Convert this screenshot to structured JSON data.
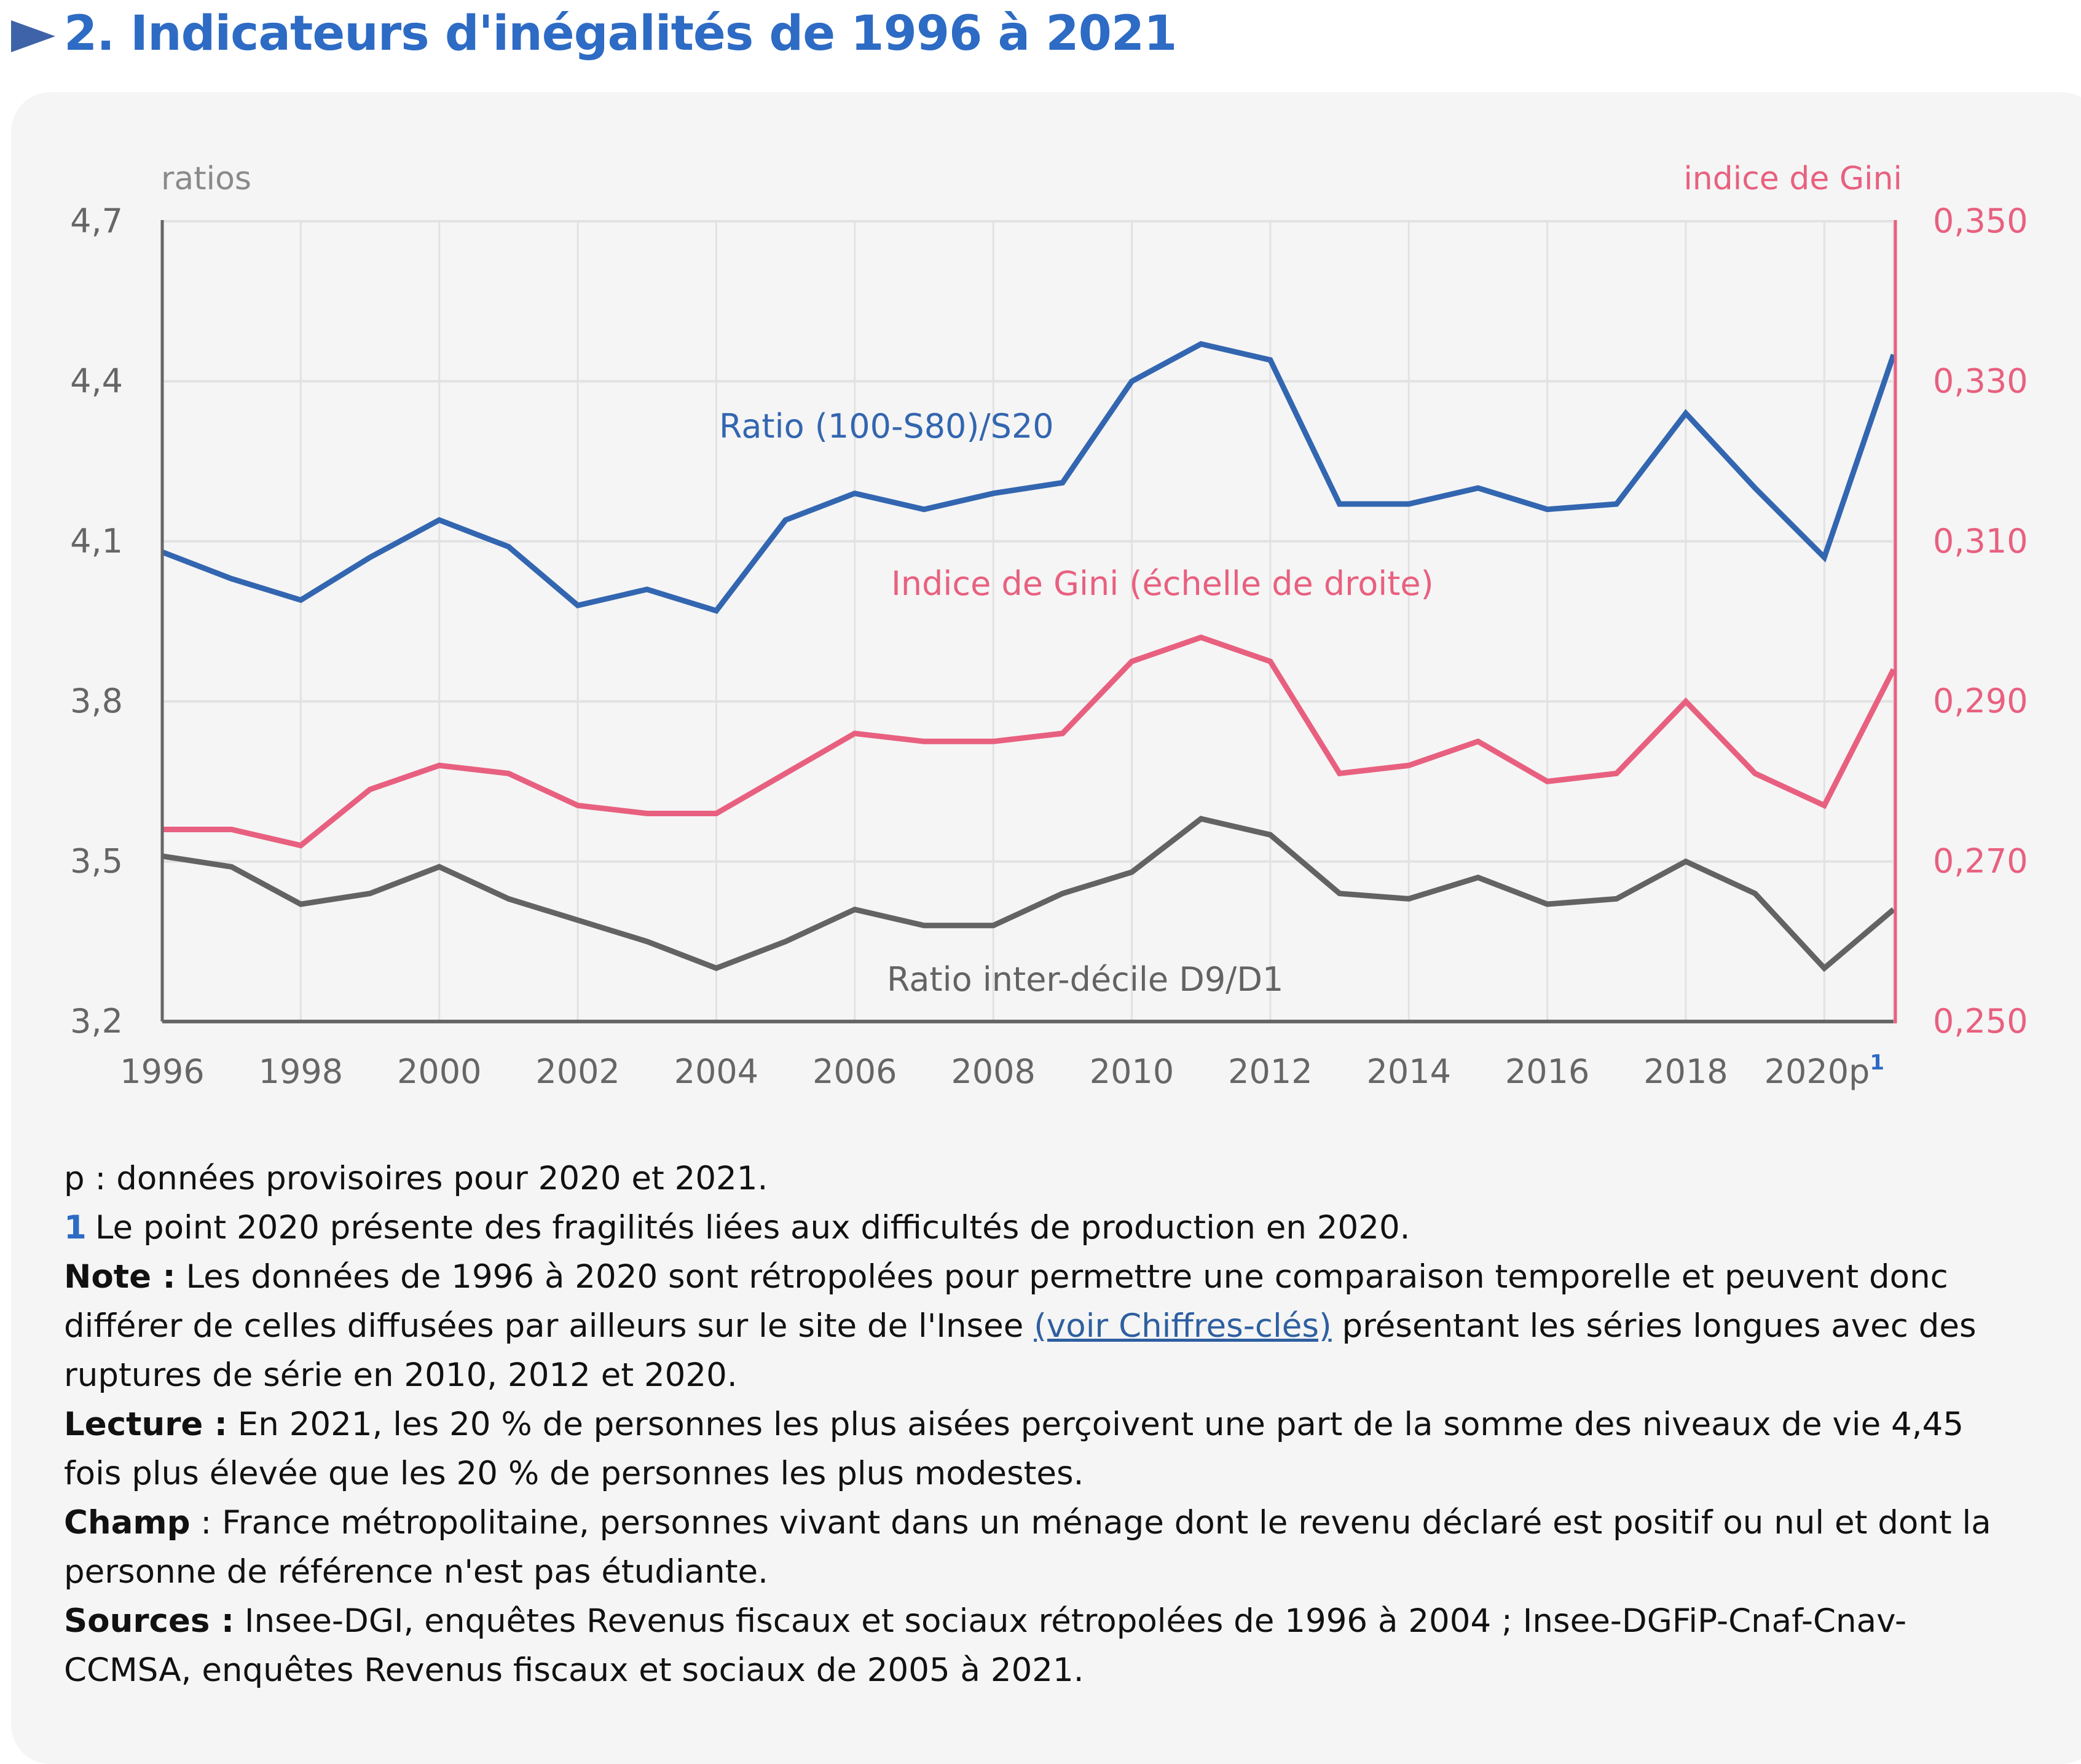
{
  "header": {
    "title": "2. Indicateurs d'inégalités de 1996 à 2021",
    "title_color": "#2d6bc4"
  },
  "chart_data": {
    "type": "line",
    "title": "2. Indicateurs d'inégalités de 1996 à 2021",
    "x": [
      1996,
      1997,
      1998,
      1999,
      2000,
      2001,
      2002,
      2003,
      2004,
      2005,
      2006,
      2007,
      2008,
      2009,
      2010,
      2011,
      2012,
      2013,
      2014,
      2015,
      2016,
      2017,
      2018,
      2019,
      2020,
      2021
    ],
    "x_tick_labels": [
      "1996",
      "1998",
      "2000",
      "2002",
      "2004",
      "2006",
      "2008",
      "2010",
      "2012",
      "2014",
      "2016",
      "2018",
      "2020p"
    ],
    "x_tick_footnote": "1",
    "left_axis": {
      "label": "ratios",
      "ylim": [
        3.2,
        4.7
      ],
      "ticks": [
        "4,7",
        "4,4",
        "4,1",
        "3,8",
        "3,5",
        "3,2"
      ],
      "tick_values": [
        4.7,
        4.4,
        4.1,
        3.8,
        3.5,
        3.2
      ]
    },
    "right_axis": {
      "label": "indice de Gini",
      "ylim": [
        0.25,
        0.35
      ],
      "ticks": [
        "0,350",
        "0,330",
        "0,310",
        "0,290",
        "0,270",
        "0,250"
      ],
      "tick_values": [
        0.35,
        0.33,
        0.31,
        0.29,
        0.27,
        0.25
      ],
      "color": "#e8607f"
    },
    "grid": true,
    "series": [
      {
        "name": "Ratio (100-S80)/S20",
        "axis": "left",
        "color": "#3366b0",
        "values": [
          4.08,
          4.03,
          3.99,
          4.07,
          4.14,
          4.09,
          3.98,
          4.01,
          3.97,
          4.14,
          4.19,
          4.16,
          4.19,
          4.21,
          4.4,
          4.47,
          4.44,
          4.17,
          4.17,
          4.2,
          4.16,
          4.17,
          4.34,
          4.2,
          4.07,
          4.45
        ]
      },
      {
        "name": "Indice de Gini (échelle de droite)",
        "axis": "right",
        "color": "#e8607f",
        "values": [
          0.274,
          0.274,
          0.272,
          0.279,
          0.282,
          0.281,
          0.277,
          0.276,
          0.276,
          0.281,
          0.286,
          0.285,
          0.285,
          0.286,
          0.295,
          0.298,
          0.295,
          0.281,
          0.282,
          0.285,
          0.28,
          0.281,
          0.29,
          0.281,
          0.277,
          0.294
        ]
      },
      {
        "name": "Ratio inter-décile D9/D1",
        "axis": "left",
        "color": "#636363",
        "values": [
          3.51,
          3.49,
          3.42,
          3.44,
          3.49,
          3.43,
          3.39,
          3.35,
          3.3,
          3.35,
          3.41,
          3.38,
          3.38,
          3.44,
          3.48,
          3.58,
          3.55,
          3.44,
          3.43,
          3.47,
          3.42,
          3.43,
          3.5,
          3.44,
          3.3,
          3.41
        ]
      }
    ]
  },
  "notes": {
    "provisional": "p : données provisoires pour 2020 et 2021.",
    "footnote_marker": "1",
    "footnote_text": "Le point 2020 présente des fragilités liées aux difficultés de production en 2020.",
    "note_label": "Note :",
    "note_text_1": " Les données de 1996 à 2020 sont rétropolées pour permettre une comparaison temporelle et peuvent donc différer de celles diffusées par ailleurs sur le site de l'Insee ",
    "note_link": "(voir Chiffres-clés)",
    "note_text_2": " présentant les séries longues avec des ruptures de série en 2010, 2012 et 2020.",
    "lecture_label": "Lecture :",
    "lecture_text": " En 2021, les 20 % de personnes les plus aisées perçoivent une part de la somme des niveaux de vie 4,45 fois plus élevée que les 20 % de personnes les plus modestes.",
    "champ_label": "Champ",
    "champ_text": " : France métropolitaine, personnes vivant dans un ménage dont le revenu déclaré est positif ou nul et dont la personne de référence n'est pas étudiante.",
    "sources_label": "Sources :",
    "sources_text": " Insee-DGI, enquêtes Revenus fiscaux et sociaux rétropolées de 1996 à 2004 ; Insee-DGFiP-Cnaf-Cnav-CCMSA, enquêtes Revenus fiscaux et sociaux de 2005 à 2021."
  }
}
